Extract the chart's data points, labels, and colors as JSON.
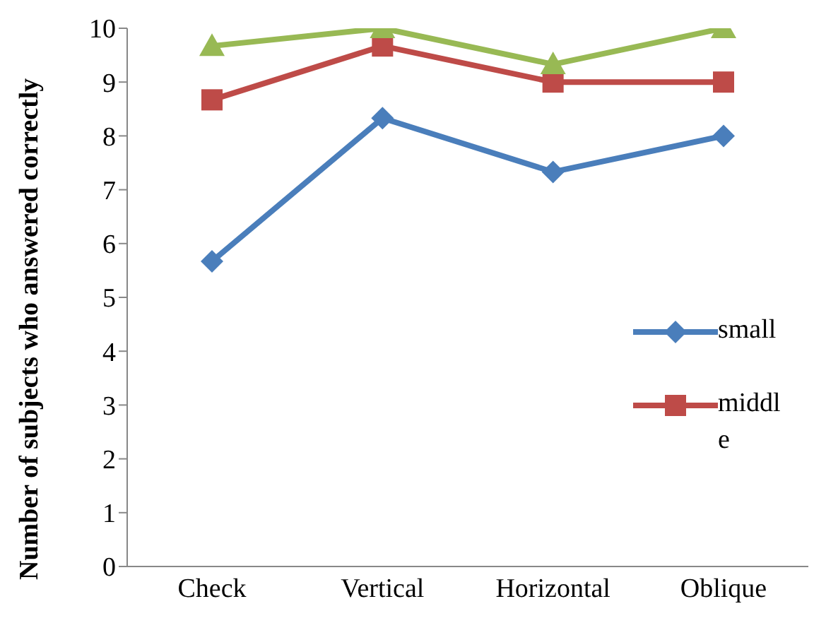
{
  "chart_data": {
    "type": "line",
    "ylabel": "Number of subjects who answered correctly",
    "categories": [
      "Check",
      "Vertical",
      "Horizontal",
      "Oblique"
    ],
    "series": [
      {
        "name": "small",
        "color": "#4a7ebb",
        "marker": "diamond",
        "values": [
          5.67,
          8.33,
          7.33,
          8.0
        ]
      },
      {
        "name": "middle",
        "color": "#be4b48",
        "marker": "square",
        "values": [
          8.67,
          9.67,
          9.0,
          9.0
        ]
      },
      {
        "color": "#98b954",
        "marker": "triangle",
        "values": [
          9.67,
          10,
          9.33,
          10
        ]
      }
    ],
    "ylim": [
      0,
      10
    ],
    "yticks": [
      0,
      1,
      2,
      3,
      4,
      5,
      6,
      7,
      8,
      9,
      10
    ],
    "grid": false,
    "legend": "right",
    "line_style": "solid"
  }
}
